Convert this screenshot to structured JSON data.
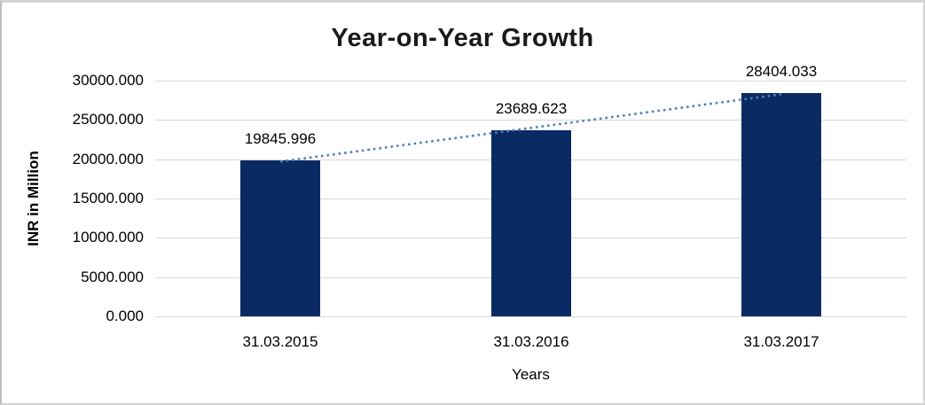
{
  "chart_data": {
    "type": "bar",
    "title": "Year-on-Year Growth",
    "xlabel": "Years",
    "ylabel": "INR in Million",
    "categories": [
      "31.03.2015",
      "31.03.2016",
      "31.03.2017"
    ],
    "values": [
      19845.996,
      23689.623,
      28404.033
    ],
    "data_labels": [
      "19845.996",
      "23689.623",
      "28404.033"
    ],
    "ylim": [
      0,
      30000
    ],
    "ytick_values": [
      0,
      5000,
      10000,
      15000,
      20000,
      25000,
      30000
    ],
    "ytick_labels": [
      "0.000",
      "5000.000",
      "10000.000",
      "15000.000",
      "20000.000",
      "25000.000",
      "30000.000"
    ],
    "grid": true,
    "legend": false,
    "colors": {
      "bar": "#0a2a64",
      "gridline": "#d9d9d9",
      "trendline": "#4f81bd",
      "title_text": "#1a1a1a",
      "axis_text": "#000000"
    },
    "trendline": {
      "type": "linear",
      "style": "dotted",
      "endpoints_value": [
        19700,
        28260
      ]
    }
  }
}
